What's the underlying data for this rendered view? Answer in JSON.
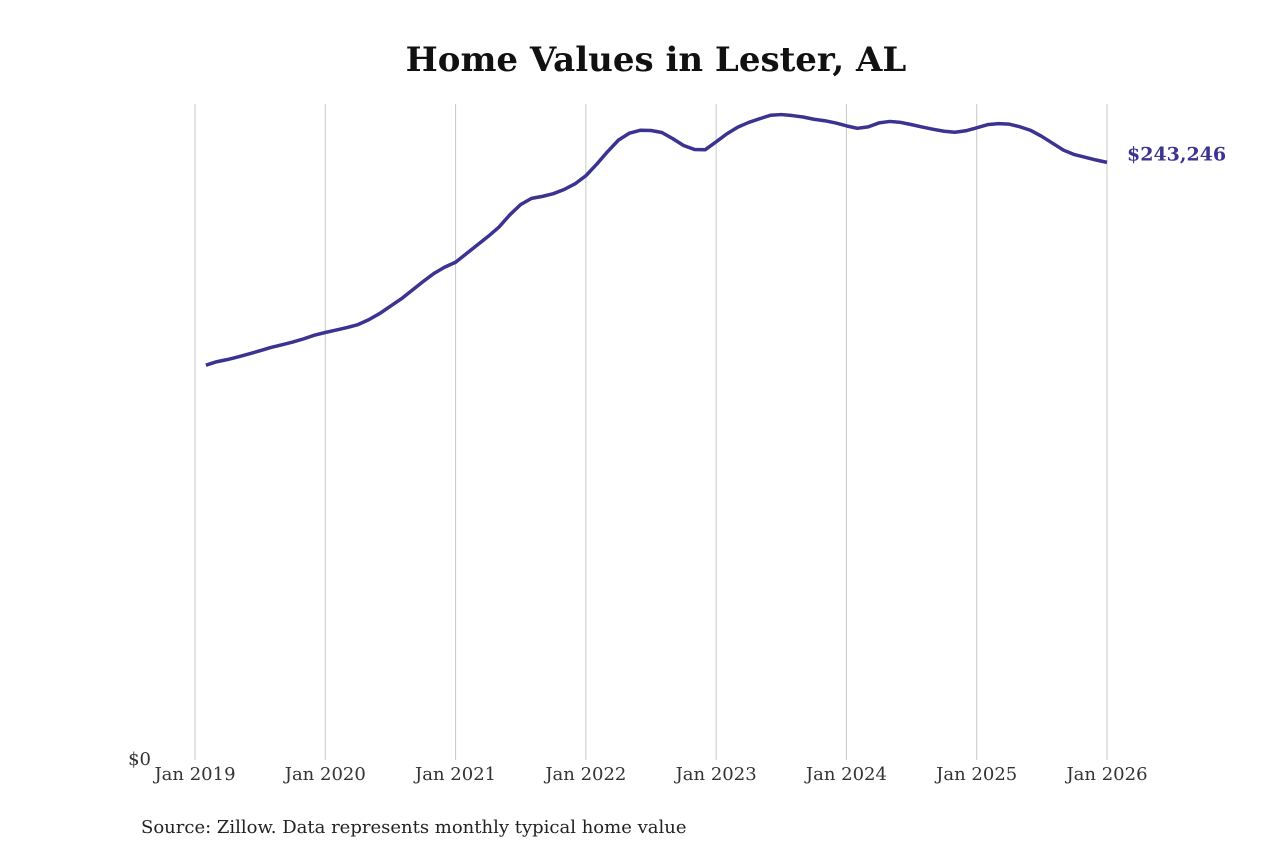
{
  "chart_data": {
    "type": "line",
    "title": "Home Values in Lester, AL",
    "source": "Source: Zillow. Data represents monthly typical home value",
    "x": [
      "2019-02",
      "2019-03",
      "2019-04",
      "2019-05",
      "2019-06",
      "2019-07",
      "2019-08",
      "2019-09",
      "2019-10",
      "2019-11",
      "2019-12",
      "2020-01",
      "2020-02",
      "2020-03",
      "2020-04",
      "2020-05",
      "2020-06",
      "2020-07",
      "2020-08",
      "2020-09",
      "2020-10",
      "2020-11",
      "2020-12",
      "2021-01",
      "2021-02",
      "2021-03",
      "2021-04",
      "2021-05",
      "2021-06",
      "2021-07",
      "2021-08",
      "2021-09",
      "2021-10",
      "2021-11",
      "2021-12",
      "2022-01",
      "2022-02",
      "2022-03",
      "2022-04",
      "2022-05",
      "2022-06",
      "2022-07",
      "2022-08",
      "2022-09",
      "2022-10",
      "2022-11",
      "2022-12",
      "2023-01",
      "2023-02",
      "2023-03",
      "2023-04",
      "2023-05",
      "2023-06",
      "2023-07",
      "2023-08",
      "2023-09",
      "2023-10",
      "2023-11",
      "2023-12",
      "2024-01",
      "2024-02",
      "2024-03",
      "2024-04",
      "2024-05",
      "2024-06",
      "2024-07",
      "2024-08",
      "2024-09",
      "2024-10",
      "2024-11",
      "2024-12",
      "2025-01",
      "2025-02",
      "2025-03",
      "2025-04",
      "2025-05",
      "2025-06",
      "2025-07",
      "2025-08",
      "2025-09",
      "2025-10",
      "2025-11",
      "2025-12",
      "2026-01"
    ],
    "series": [
      {
        "name": "Lester, AL",
        "color": "#3b3391",
        "values": [
          160700,
          162100,
          163000,
          164100,
          165300,
          166600,
          167900,
          169000,
          170100,
          171400,
          172900,
          174000,
          175000,
          176000,
          177200,
          179200,
          181700,
          184700,
          187700,
          191200,
          194700,
          198000,
          200600,
          202600,
          206100,
          209600,
          213100,
          216900,
          221900,
          226100,
          228600,
          229400,
          230500,
          232200,
          234500,
          237800,
          242500,
          247600,
          252300,
          255100,
          256300,
          256200,
          255400,
          252900,
          250100,
          248500,
          248400,
          251600,
          254900,
          257600,
          259500,
          261000,
          262400,
          262700,
          262300,
          261700,
          260800,
          260200,
          259300,
          258100,
          257100,
          257700,
          259300,
          259900,
          259500,
          258600,
          257600,
          256700,
          255900,
          255500,
          256100,
          257300,
          258600,
          259000,
          258800,
          257700,
          256200,
          253800,
          251000,
          248200,
          246400,
          245300,
          244200,
          243246
        ],
        "value_labels": [
          null,
          null,
          null,
          null,
          null,
          null,
          null,
          null,
          null,
          null,
          null,
          null,
          null,
          null,
          null,
          null,
          null,
          null,
          null,
          null,
          null,
          null,
          null,
          null,
          null,
          null,
          null,
          null,
          null,
          null,
          null,
          null,
          null,
          null,
          null,
          null,
          null,
          null,
          null,
          null,
          null,
          null,
          null,
          null,
          null,
          null,
          null,
          null,
          null,
          null,
          null,
          null,
          null,
          null,
          null,
          null,
          null,
          null,
          null,
          null,
          null,
          null,
          null,
          null,
          null,
          null,
          null,
          null,
          null,
          null,
          null,
          null,
          null,
          null,
          null,
          null,
          null,
          null,
          null,
          null,
          null,
          null,
          null,
          "$243,246"
        ]
      }
    ],
    "xlim": [
      "2019-01",
      "2026-01"
    ],
    "xticks": [
      {
        "value": "2019-01",
        "label": "Jan 2019"
      },
      {
        "value": "2020-01",
        "label": "Jan 2020"
      },
      {
        "value": "2021-01",
        "label": "Jan 2021"
      },
      {
        "value": "2022-01",
        "label": "Jan 2022"
      },
      {
        "value": "2023-01",
        "label": "Jan 2023"
      },
      {
        "value": "2024-01",
        "label": "Jan 2024"
      },
      {
        "value": "2025-01",
        "label": "Jan 2025"
      },
      {
        "value": "2026-01",
        "label": "Jan 2026"
      }
    ],
    "ylim": [
      0,
      267000
    ],
    "yticks": [
      {
        "value": 0,
        "label": "$0"
      }
    ],
    "grid": true
  }
}
